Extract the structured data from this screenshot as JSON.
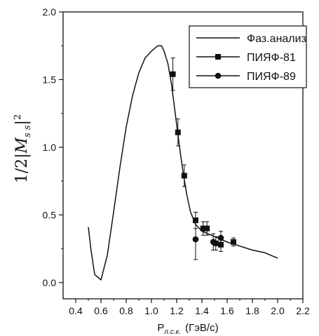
{
  "chart_data": {
    "type": "scatter",
    "title": "",
    "xlabel": {
      "base": "P",
      "subscript": "л.с.к.",
      "unit": "(ГэВ/с)"
    },
    "ylabel": {
      "prefix": "1/2|",
      "symbol": "M",
      "subscript": "s s",
      "suffix": "|",
      "superscript": "2"
    },
    "xlim": [
      0.3,
      2.2
    ],
    "ylim": [
      -0.12,
      2.0
    ],
    "x_ticks": [
      0.4,
      0.6,
      0.8,
      1.0,
      1.2,
      1.4,
      1.6,
      1.8,
      2.0,
      2.2
    ],
    "x_tick_labels": [
      "0.4",
      "0.6",
      "0.8",
      "1.0",
      "1.2",
      "1.4",
      "1.6",
      "1.8",
      "2.0",
      "2.2"
    ],
    "y_ticks": [
      0.0,
      0.5,
      1.0,
      1.5,
      2.0
    ],
    "y_tick_labels": [
      "0.0",
      "0.5",
      "1.0",
      "1.5",
      "2.0"
    ],
    "grid": false,
    "legend_position": "top-right",
    "series": [
      {
        "name": "Фаз.анализ",
        "kind": "line",
        "x": [
          0.5,
          0.52,
          0.55,
          0.6,
          0.65,
          0.7,
          0.75,
          0.8,
          0.85,
          0.9,
          0.95,
          1.0,
          1.05,
          1.08,
          1.1,
          1.13,
          1.16,
          1.19,
          1.22,
          1.25,
          1.28,
          1.31,
          1.35,
          1.4,
          1.45,
          1.5,
          1.6,
          1.7,
          1.8,
          1.9,
          2.0
        ],
        "y": [
          0.41,
          0.25,
          0.06,
          0.02,
          0.2,
          0.52,
          0.85,
          1.15,
          1.38,
          1.55,
          1.66,
          1.71,
          1.75,
          1.75,
          1.71,
          1.62,
          1.46,
          1.24,
          1.02,
          0.82,
          0.65,
          0.52,
          0.43,
          0.38,
          0.36,
          0.34,
          0.3,
          0.27,
          0.24,
          0.22,
          0.18
        ]
      },
      {
        "name": "ПИЯФ-81",
        "kind": "points",
        "marker": "square",
        "x": [
          1.17,
          1.21,
          1.26,
          1.35,
          1.41,
          1.44,
          1.51,
          1.55,
          1.65
        ],
        "y": [
          1.54,
          1.11,
          0.79,
          0.46,
          0.4,
          0.4,
          0.29,
          0.28,
          0.3
        ],
        "err": [
          0.12,
          0.1,
          0.08,
          0.06,
          0.05,
          0.05,
          0.05,
          0.05,
          0.03
        ]
      },
      {
        "name": "ПИЯФ-89",
        "kind": "points",
        "marker": "circle",
        "x": [
          1.35,
          1.49,
          1.55
        ],
        "y": [
          0.32,
          0.3,
          0.33
        ],
        "err": [
          0.15,
          0.06,
          0.05
        ]
      }
    ]
  }
}
